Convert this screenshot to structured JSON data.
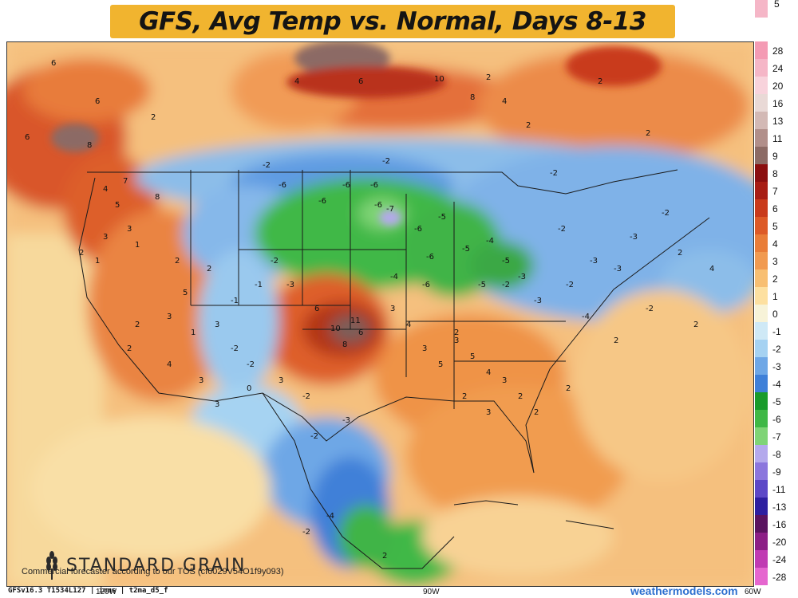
{
  "title": "GFS, Avg Temp vs. Normal, Days 8-13",
  "legend": {
    "top_partial": "5",
    "values": [
      "28",
      "24",
      "20",
      "16",
      "13",
      "11",
      "9",
      "8",
      "7",
      "6",
      "5",
      "4",
      "3",
      "2",
      "1",
      "0",
      "-1",
      "-2",
      "-3",
      "-4",
      "-5",
      "-6",
      "-7",
      "-8",
      "-9",
      "-11",
      "-13",
      "-16",
      "-20",
      "-24",
      "-28"
    ],
    "colors": [
      "#f49bb4",
      "#f5b6c7",
      "#f8d3dc",
      "#e9d9d6",
      "#d3b9b5",
      "#b18f8a",
      "#8c6b65",
      "#8b0f0f",
      "#a81d14",
      "#c93a1b",
      "#dd5a27",
      "#e97d38",
      "#f19a50",
      "#f8bf72",
      "#fde0a0",
      "#f7f3d8",
      "#cfe9f6",
      "#a5d2f2",
      "#6ea7e6",
      "#3f80d8",
      "#199b2b",
      "#3fb846",
      "#7fd476",
      "#b4a9ec",
      "#8b76dd",
      "#5c48c7",
      "#2d1fa0",
      "#5a1460",
      "#8c1f86",
      "#c03bb3",
      "#e566cf"
    ]
  },
  "map_labels": [
    {
      "t": "6"
    },
    {
      "t": "6"
    },
    {
      "t": "8"
    },
    {
      "t": "6"
    },
    {
      "t": "2"
    },
    {
      "t": "4"
    },
    {
      "t": "2"
    },
    {
      "t": "10"
    },
    {
      "t": "6"
    },
    {
      "t": "8"
    },
    {
      "t": "4"
    },
    {
      "t": "2"
    },
    {
      "t": "-2"
    },
    {
      "t": "-2"
    },
    {
      "t": "2"
    },
    {
      "t": "2"
    },
    {
      "t": "-2"
    },
    {
      "t": "-6"
    },
    {
      "t": "-6"
    },
    {
      "t": "-6"
    },
    {
      "t": "-6"
    },
    {
      "t": "-6"
    },
    {
      "t": "-7"
    },
    {
      "t": "-6"
    },
    {
      "t": "-5"
    },
    {
      "t": "-5"
    },
    {
      "t": "-6"
    },
    {
      "t": "-4"
    },
    {
      "t": "-5"
    },
    {
      "t": "-3"
    },
    {
      "t": "-2"
    },
    {
      "t": "-3"
    },
    {
      "t": "-3"
    },
    {
      "t": "-2"
    },
    {
      "t": "-3"
    },
    {
      "t": "-2"
    },
    {
      "t": "4"
    },
    {
      "t": "5"
    },
    {
      "t": "7"
    },
    {
      "t": "8"
    },
    {
      "t": "3"
    },
    {
      "t": "2"
    },
    {
      "t": "1"
    },
    {
      "t": "3"
    },
    {
      "t": "1"
    },
    {
      "t": "2"
    },
    {
      "t": "2"
    },
    {
      "t": "3"
    },
    {
      "t": "1"
    },
    {
      "t": "-1"
    },
    {
      "t": "2"
    },
    {
      "t": "11"
    },
    {
      "t": "6"
    },
    {
      "t": "10"
    },
    {
      "t": "8"
    },
    {
      "t": "6"
    },
    {
      "t": "3"
    },
    {
      "t": "4"
    },
    {
      "t": "3"
    },
    {
      "t": "5"
    },
    {
      "t": "3"
    },
    {
      "t": "5"
    },
    {
      "t": "4"
    },
    {
      "t": "3"
    },
    {
      "t": "2"
    },
    {
      "t": "2"
    },
    {
      "t": "3"
    },
    {
      "t": "2"
    },
    {
      "t": "-2"
    },
    {
      "t": "-3"
    },
    {
      "t": "-1"
    },
    {
      "t": "-2"
    },
    {
      "t": "0"
    },
    {
      "t": "-2"
    },
    {
      "t": "-3"
    },
    {
      "t": "-4"
    },
    {
      "t": "-2"
    },
    {
      "t": "2"
    },
    {
      "t": "2"
    },
    {
      "t": "2"
    },
    {
      "t": "2"
    },
    {
      "t": "4"
    },
    {
      "t": "-4"
    },
    {
      "t": "-3"
    },
    {
      "t": "-2"
    },
    {
      "t": "-5"
    },
    {
      "t": "-6"
    },
    {
      "t": "-4"
    },
    {
      "t": "-2"
    },
    {
      "t": "2"
    },
    {
      "t": "2"
    },
    {
      "t": "3"
    },
    {
      "t": "3"
    },
    {
      "t": "-2"
    },
    {
      "t": "-2"
    },
    {
      "t": "3"
    },
    {
      "t": "2"
    },
    {
      "t": "4"
    },
    {
      "t": "5"
    },
    {
      "t": "3"
    }
  ],
  "logo_text": "STANDARD GRAIN",
  "disclaimer": "Commercial forecaster according to our TOS (cf6029V54O1f9y093)",
  "model_info": "GFSv16.3 T1534L127 | imus | t2ma_d5_f",
  "site": "weathermodels.com",
  "ticks": {
    "w120": "120W",
    "w90": "90W",
    "w60": "60W"
  }
}
